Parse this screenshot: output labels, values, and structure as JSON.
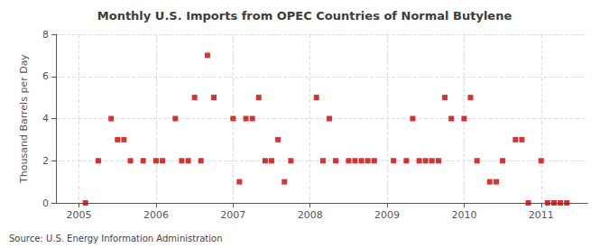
{
  "chart_data": {
    "type": "scatter",
    "title": "Monthly U.S. Imports from OPEC Countries of Normal Butylene",
    "ylabel": "Thousand Barrels per Day",
    "annotations": [
      "Source: U.S. Energy Information Administration"
    ],
    "color": "#CC0000",
    "marker": "square",
    "grid": true,
    "xlim": [
      2004.7,
      2011.6
    ],
    "xticks": [
      2005,
      2006,
      2007,
      2008,
      2009,
      2010,
      2011
    ],
    "ylim": [
      0,
      8
    ],
    "yticks": [
      0,
      2,
      4,
      6,
      8
    ],
    "x": [
      2005.083,
      2005.25,
      2005.417,
      2005.5,
      2005.583,
      2005.667,
      2005.833,
      2006.0,
      2006.083,
      2006.25,
      2006.333,
      2006.417,
      2006.5,
      2006.583,
      2006.667,
      2006.75,
      2007.0,
      2007.083,
      2007.167,
      2007.25,
      2007.333,
      2007.417,
      2007.5,
      2007.583,
      2007.667,
      2007.75,
      2008.083,
      2008.167,
      2008.25,
      2008.333,
      2008.5,
      2008.583,
      2008.667,
      2008.75,
      2008.833,
      2009.083,
      2009.25,
      2009.333,
      2009.417,
      2009.5,
      2009.583,
      2009.667,
      2009.75,
      2009.833,
      2010.0,
      2010.083,
      2010.167,
      2010.333,
      2010.417,
      2010.5,
      2010.667,
      2010.75,
      2010.833,
      2011.0,
      2011.083,
      2011.167,
      2011.25,
      2011.333
    ],
    "values": [
      0,
      2,
      4,
      3,
      3,
      2,
      2,
      2,
      2,
      4,
      2,
      2,
      5,
      2,
      7,
      5,
      4,
      1,
      4,
      4,
      5,
      2,
      2,
      3,
      1,
      2,
      5,
      2,
      4,
      2,
      2,
      2,
      2,
      2,
      2,
      2,
      2,
      4,
      2,
      2,
      2,
      2,
      5,
      4,
      4,
      5,
      2,
      1,
      1,
      2,
      3,
      3,
      0,
      2,
      0,
      0,
      0,
      0
    ]
  }
}
